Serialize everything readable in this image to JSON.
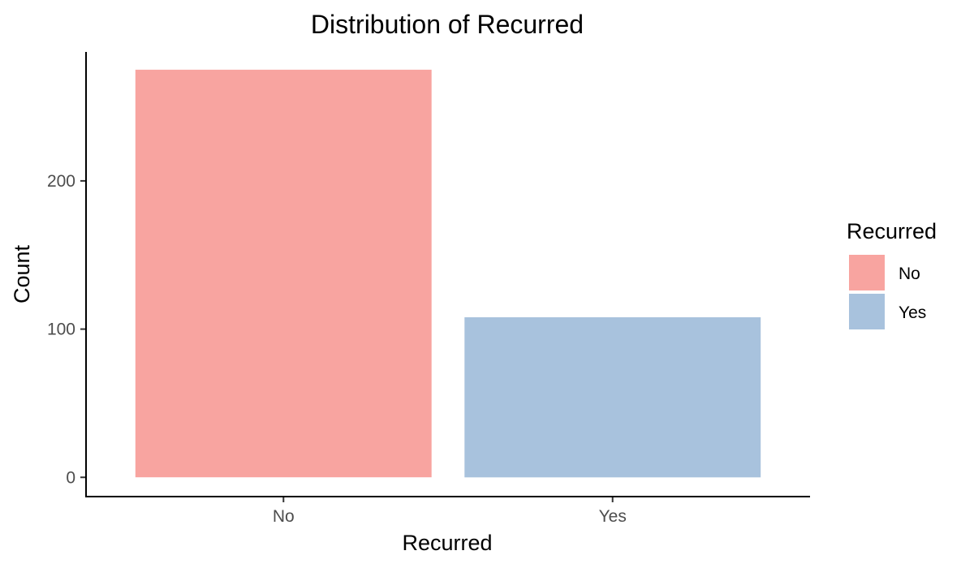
{
  "chart_data": {
    "type": "bar",
    "title": "Distribution of Recurred",
    "xlabel": "Recurred",
    "ylabel": "Count",
    "categories": [
      "No",
      "Yes"
    ],
    "values": [
      275,
      108
    ],
    "colors": [
      "#F8A4A0",
      "#A8C2DD"
    ],
    "ylim": [
      -13,
      287
    ],
    "yticks": [
      0,
      100,
      200
    ],
    "ytick_labels": [
      "0",
      "100",
      "200"
    ],
    "grid": false,
    "legend": {
      "title": "Recurred",
      "placement": "right",
      "entries": [
        {
          "label": "No",
          "color": "#F8A4A0"
        },
        {
          "label": "Yes",
          "color": "#A8C2DD"
        }
      ]
    }
  }
}
